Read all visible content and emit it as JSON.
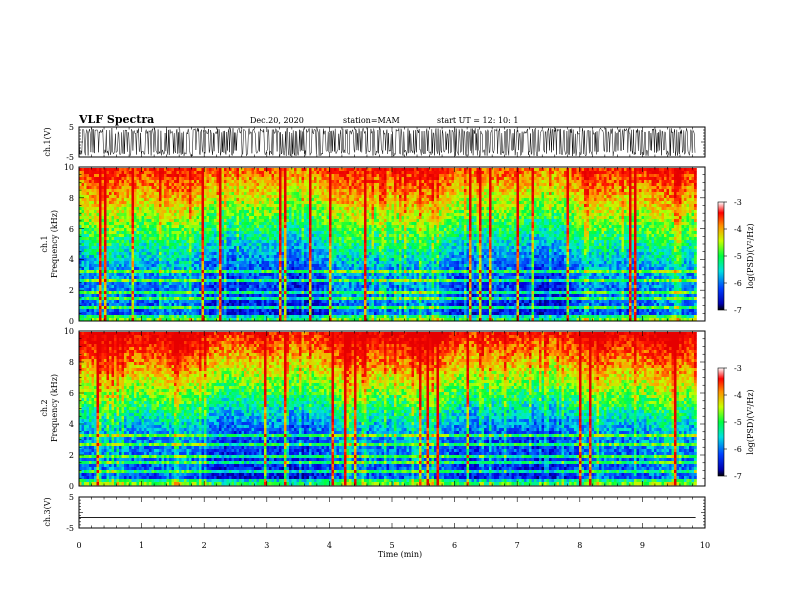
{
  "header": {
    "title": "VLF Spectra",
    "date": "Dec.20, 2020",
    "station": "station=MAM",
    "start": "start  UT =   12: 10: 1"
  },
  "chart_data": [
    {
      "type": "line",
      "name": "ch1-waveform",
      "ylabel": "ch.1(V)",
      "ylim": [
        -5,
        5
      ],
      "ytick_labels": [
        "5",
        "-5"
      ],
      "xlim": [
        0,
        10
      ]
    },
    {
      "type": "heatmap",
      "name": "ch1-spectrogram",
      "ylabel_line1": "ch.1",
      "ylabel_line2": "Frequency (kHz)",
      "ylim": [
        0,
        10
      ],
      "ytick_labels": [
        "0",
        "2",
        "4",
        "6",
        "8",
        "10"
      ],
      "colorbar": {
        "label": "log(PSD)(V²/Hz)",
        "range": [
          -7,
          -3
        ],
        "tick_labels": [
          "-3",
          "-4",
          "-5",
          "-6",
          "-7"
        ]
      }
    },
    {
      "type": "heatmap",
      "name": "ch2-spectrogram",
      "ylabel_line1": "ch.2",
      "ylabel_line2": "Frequency (kHz)",
      "ylim": [
        0,
        10
      ],
      "ytick_labels": [
        "0",
        "2",
        "4",
        "6",
        "8",
        "10"
      ],
      "colorbar": {
        "label": "log(PSD)(V²/Hz)",
        "range": [
          -7,
          -3
        ],
        "tick_labels": [
          "-3",
          "-4",
          "-5",
          "-6",
          "-7"
        ]
      }
    },
    {
      "type": "line",
      "name": "ch3-waveform",
      "ylabel": "ch.3(V)",
      "ylim": [
        -5,
        5
      ],
      "ytick_labels": [
        "5",
        "-5"
      ],
      "xlim": [
        0,
        10
      ],
      "values": [
        -1.6
      ]
    }
  ],
  "xaxis": {
    "label": "Time (min)",
    "range": [
      0,
      10
    ],
    "tick_labels": [
      "0",
      "1",
      "2",
      "3",
      "4",
      "5",
      "6",
      "7",
      "8",
      "9",
      "10"
    ],
    "data_end": 9.85
  }
}
